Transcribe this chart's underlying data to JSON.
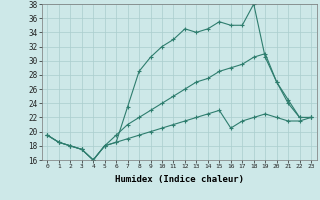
{
  "xlabel": "Humidex (Indice chaleur)",
  "ylabel": "",
  "background_color": "#cde8e8",
  "grid_color": "#aacece",
  "line_color": "#2e7d6e",
  "xlim_min": -0.5,
  "xlim_max": 23.5,
  "ylim_min": 16,
  "ylim_max": 38,
  "yticks": [
    16,
    18,
    20,
    22,
    24,
    26,
    28,
    30,
    32,
    34,
    36,
    38
  ],
  "xticks": [
    0,
    1,
    2,
    3,
    4,
    5,
    6,
    7,
    8,
    9,
    10,
    11,
    12,
    13,
    14,
    15,
    16,
    17,
    18,
    19,
    20,
    21,
    22,
    23
  ],
  "series": [
    [
      19.5,
      18.5,
      18.0,
      17.5,
      16.0,
      18.0,
      18.5,
      23.5,
      28.5,
      30.5,
      32.0,
      33.0,
      34.5,
      34.0,
      34.5,
      35.5,
      35.0,
      35.0,
      38.0,
      30.5,
      27.0,
      24.0,
      22.0,
      22.0
    ],
    [
      19.5,
      18.5,
      18.0,
      17.5,
      16.0,
      18.0,
      19.5,
      21.0,
      22.0,
      23.0,
      24.0,
      25.0,
      26.0,
      27.0,
      27.5,
      28.5,
      29.0,
      29.5,
      30.5,
      31.0,
      27.0,
      24.5,
      22.0,
      22.0
    ],
    [
      19.5,
      18.5,
      18.0,
      17.5,
      16.0,
      18.0,
      18.5,
      19.0,
      19.5,
      20.0,
      20.5,
      21.0,
      21.5,
      22.0,
      22.5,
      23.0,
      20.5,
      21.5,
      22.0,
      22.5,
      22.0,
      21.5,
      21.5,
      22.0
    ]
  ]
}
